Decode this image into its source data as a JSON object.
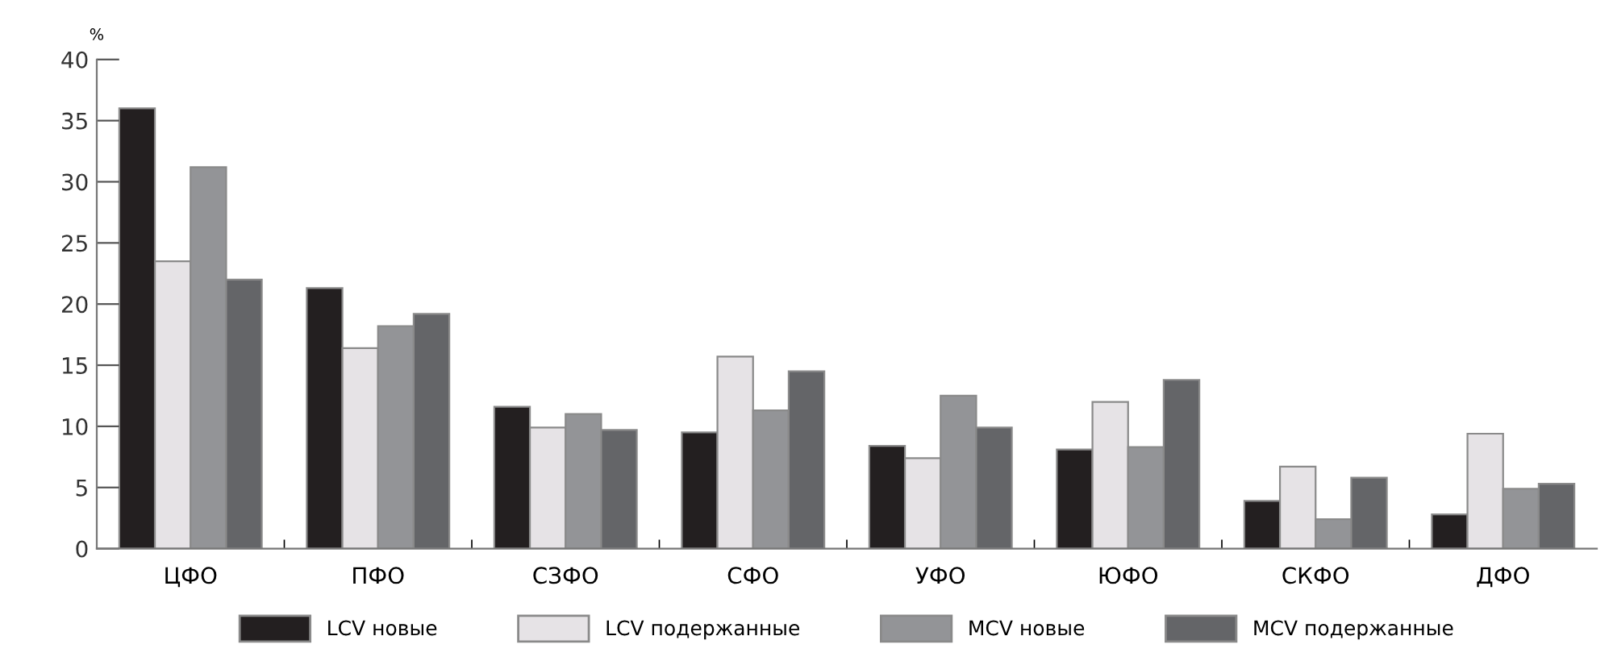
{
  "chart_data": {
    "type": "bar",
    "ylabel": "%",
    "categories": [
      "ЦФО",
      "ПФО",
      "СЗФО",
      "СФО",
      "УФО",
      "ЮФО",
      "СКФО",
      "ДФО"
    ],
    "series": [
      {
        "name": "LCV новые",
        "color": "#231f20",
        "values": [
          36,
          21.3,
          11.6,
          9.5,
          8.4,
          8.1,
          3.9,
          2.8
        ]
      },
      {
        "name": "LCV подержанные",
        "color": "#e6e3e6",
        "values": [
          23.5,
          16.4,
          9.9,
          15.7,
          7.4,
          12,
          6.7,
          9.4
        ]
      },
      {
        "name": "MCV новые",
        "color": "#939497",
        "values": [
          31.2,
          18.2,
          11,
          11.3,
          12.5,
          8.3,
          2.4,
          4.9
        ]
      },
      {
        "name": "MCV подержанные",
        "color": "#646568",
        "values": [
          22,
          19.2,
          9.7,
          14.5,
          9.9,
          13.8,
          5.8,
          5.3
        ]
      }
    ],
    "ylim": [
      0,
      40
    ],
    "yticks": [
      0,
      5,
      10,
      15,
      20,
      25,
      30,
      35,
      40
    ],
    "grid": false,
    "legend": "bottom"
  }
}
